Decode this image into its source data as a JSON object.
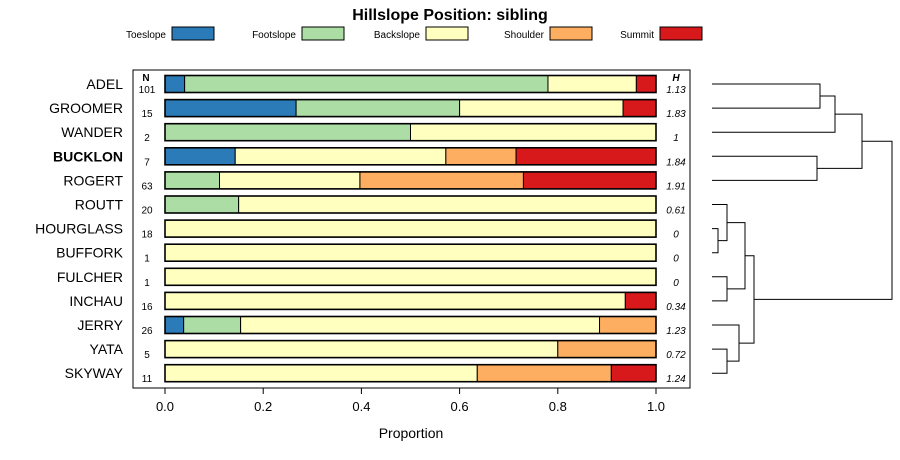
{
  "chart_data": {
    "type": "bar",
    "orientation": "horizontal",
    "stacked": true,
    "title": "Hillslope Position: sibling",
    "xlabel": "Proportion",
    "ylabel": "",
    "xlim": [
      0,
      1
    ],
    "x_ticks": [
      "0.0",
      "0.2",
      "0.4",
      "0.6",
      "0.8",
      "1.0"
    ],
    "n_header": "N",
    "h_header": "H",
    "legend": [
      {
        "name": "Toeslope",
        "color": "#2b7bb9"
      },
      {
        "name": "Footslope",
        "color": "#abdda4"
      },
      {
        "name": "Backslope",
        "color": "#ffffbf"
      },
      {
        "name": "Shoulder",
        "color": "#fdae61"
      },
      {
        "name": "Summit",
        "color": "#d7191c"
      }
    ],
    "rows": [
      {
        "name": "ADEL",
        "n": "101",
        "h": "1.13",
        "bold": false,
        "values": [
          0.04,
          0.74,
          0.18,
          0.0,
          0.04
        ]
      },
      {
        "name": "GROOMER",
        "n": "15",
        "h": "1.83",
        "bold": false,
        "values": [
          0.267,
          0.333,
          0.333,
          0.0,
          0.067
        ]
      },
      {
        "name": "WANDER",
        "n": "2",
        "h": "1",
        "bold": false,
        "values": [
          0.0,
          0.5,
          0.5,
          0.0,
          0.0
        ]
      },
      {
        "name": "BUCKLON",
        "n": "7",
        "h": "1.84",
        "bold": true,
        "values": [
          0.143,
          0.0,
          0.429,
          0.143,
          0.285
        ]
      },
      {
        "name": "ROGERT",
        "n": "63",
        "h": "1.91",
        "bold": false,
        "values": [
          0.0,
          0.111,
          0.286,
          0.333,
          0.27
        ]
      },
      {
        "name": "ROUTT",
        "n": "20",
        "h": "0.61",
        "bold": false,
        "values": [
          0.0,
          0.15,
          0.85,
          0.0,
          0.0
        ]
      },
      {
        "name": "HOURGLASS",
        "n": "18",
        "h": "0",
        "bold": false,
        "values": [
          0.0,
          0.0,
          1.0,
          0.0,
          0.0
        ]
      },
      {
        "name": "BUFFORK",
        "n": "1",
        "h": "0",
        "bold": false,
        "values": [
          0.0,
          0.0,
          1.0,
          0.0,
          0.0
        ]
      },
      {
        "name": "FULCHER",
        "n": "1",
        "h": "0",
        "bold": false,
        "values": [
          0.0,
          0.0,
          1.0,
          0.0,
          0.0
        ]
      },
      {
        "name": "INCHAU",
        "n": "16",
        "h": "0.34",
        "bold": false,
        "values": [
          0.0,
          0.0,
          0.9375,
          0.0,
          0.0625
        ]
      },
      {
        "name": "JERRY",
        "n": "26",
        "h": "1.23",
        "bold": false,
        "values": [
          0.038,
          0.116,
          0.731,
          0.115,
          0.0
        ]
      },
      {
        "name": "YATA",
        "n": "5",
        "h": "0.72",
        "bold": false,
        "values": [
          0.0,
          0.0,
          0.8,
          0.2,
          0.0
        ]
      },
      {
        "name": "SKYWAY",
        "n": "11",
        "h": "1.24",
        "bold": false,
        "values": [
          0.0,
          0.0,
          0.636,
          0.273,
          0.091
        ]
      }
    ],
    "dendrogram": {
      "type": "hierarchical-clustering",
      "merges": [
        {
          "id": "m1",
          "a": "ADEL",
          "b": "GROOMER",
          "height": 0.72
        },
        {
          "id": "m2",
          "a": "WANDER",
          "b": "m1",
          "height": 0.82
        },
        {
          "id": "m3",
          "a": "BUCKLON",
          "b": "ROGERT",
          "height": 0.7
        },
        {
          "id": "m4",
          "a": "m2",
          "b": "m3",
          "height": 1.0
        },
        {
          "id": "m5",
          "a": "HOURGLASS",
          "b": "BUFFORK",
          "height": 0.04
        },
        {
          "id": "m6",
          "a": "ROUTT",
          "b": "m5",
          "height": 0.1
        },
        {
          "id": "m7",
          "a": "FULCHER",
          "b": "INCHAU",
          "height": 0.1
        },
        {
          "id": "m8",
          "a": "m6",
          "b": "m7",
          "height": 0.22
        },
        {
          "id": "m9",
          "a": "YATA",
          "b": "SKYWAY",
          "height": 0.1
        },
        {
          "id": "m10",
          "a": "JERRY",
          "b": "m9",
          "height": 0.18
        },
        {
          "id": "m11",
          "a": "m8",
          "b": "m10",
          "height": 0.28
        },
        {
          "id": "m12",
          "a": "m11",
          "b": "m4",
          "height": 1.2
        }
      ]
    }
  }
}
